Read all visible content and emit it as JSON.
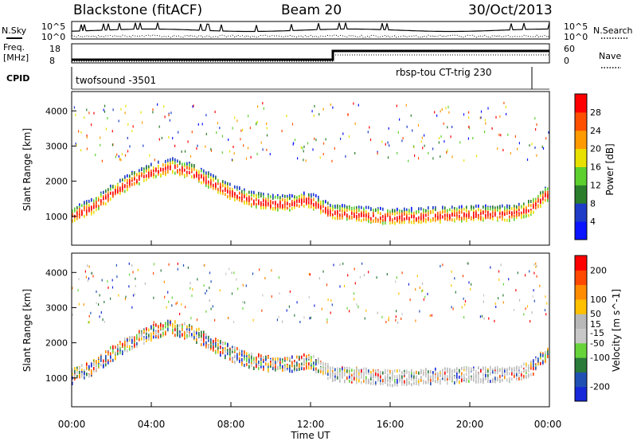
{
  "header": {
    "station": "Blackstone (fitACF)",
    "beam": "Beam 20",
    "date": "30/Oct/2013"
  },
  "top_panels": {
    "nsky_label": "N.Sky",
    "nsearch_label": "N.Search",
    "freq_label_1": "Freq.",
    "freq_label_2": "[MHz]",
    "nave_label": "Nave",
    "cpid_label": "CPID",
    "noise_ticks": [
      "10^5",
      "10^0"
    ],
    "freq_ticks": [
      "18",
      "8"
    ],
    "nave_ticks": [
      "60",
      "0"
    ],
    "cpid_left": "twofsound -3501",
    "cpid_right": "rbsp-tou CT-trig 230"
  },
  "colors": {
    "power_scale": [
      "#0a14ff",
      "#1e3cc8",
      "#2a7d2a",
      "#5cd12e",
      "#e8e000",
      "#ff9a00",
      "#ff5000",
      "#ff0000"
    ],
    "velocity_scale": [
      "#1628d8",
      "#2050b4",
      "#2a7a3a",
      "#67d43a",
      "#c8c8c8",
      "#b8b8b8",
      "#ffc000",
      "#ff8c00",
      "#ff4800",
      "#ff0000"
    ],
    "background": "#ffffff"
  },
  "chart_data": [
    {
      "type": "heatmap",
      "title": "",
      "xlabel": "Time UT",
      "ylabel": "Slant Range [km]",
      "xticks": [
        "00:00",
        "04:00",
        "08:00",
        "12:00",
        "16:00",
        "20:00",
        "00:00"
      ],
      "xlim_hours": [
        0,
        24
      ],
      "ylim": [
        180,
        4550
      ],
      "yticks": [
        1000,
        2000,
        3000,
        4000
      ],
      "colorbar_label": "Power [dB]",
      "colorbar_ticks": [
        4,
        8,
        12,
        16,
        20,
        24,
        28
      ],
      "colorbar_range": [
        0,
        32
      ],
      "main_echo_band": {
        "x_hours": [
          0,
          1,
          2,
          3,
          4,
          5,
          6,
          7,
          8,
          9,
          10,
          11,
          11.8,
          12.2,
          13,
          14,
          16,
          18,
          20,
          22,
          23,
          23.8
        ],
        "range_km": [
          1000,
          1250,
          1650,
          2000,
          2250,
          2400,
          2250,
          1950,
          1650,
          1450,
          1350,
          1350,
          1450,
          1350,
          1100,
          1050,
          950,
          1000,
          1050,
          1050,
          1200,
          1600
        ]
      }
    },
    {
      "type": "heatmap",
      "title": "",
      "xlabel": "Time UT",
      "ylabel": "Slant Range [km]",
      "xticks": [
        "00:00",
        "04:00",
        "08:00",
        "12:00",
        "16:00",
        "20:00",
        "00:00"
      ],
      "xlim_hours": [
        0,
        24
      ],
      "ylim": [
        180,
        4550
      ],
      "yticks": [
        1000,
        2000,
        3000,
        4000
      ],
      "colorbar_label": "Velocity [m s^-1]",
      "colorbar_ticks": [
        200,
        100,
        50,
        15,
        -15,
        -50,
        -100,
        -200
      ],
      "colorbar_range": [
        -250,
        250
      ],
      "main_echo_band": {
        "x_hours": [
          0,
          1,
          2,
          3,
          4,
          5,
          6,
          7,
          8,
          9,
          10,
          11,
          11.8,
          12.2,
          13,
          14,
          16,
          18,
          20,
          22,
          23,
          23.8
        ],
        "range_km": [
          1000,
          1250,
          1650,
          2000,
          2250,
          2400,
          2250,
          1950,
          1650,
          1450,
          1350,
          1350,
          1450,
          1350,
          1100,
          1050,
          950,
          1000,
          1050,
          1050,
          1200,
          1600
        ]
      }
    }
  ]
}
